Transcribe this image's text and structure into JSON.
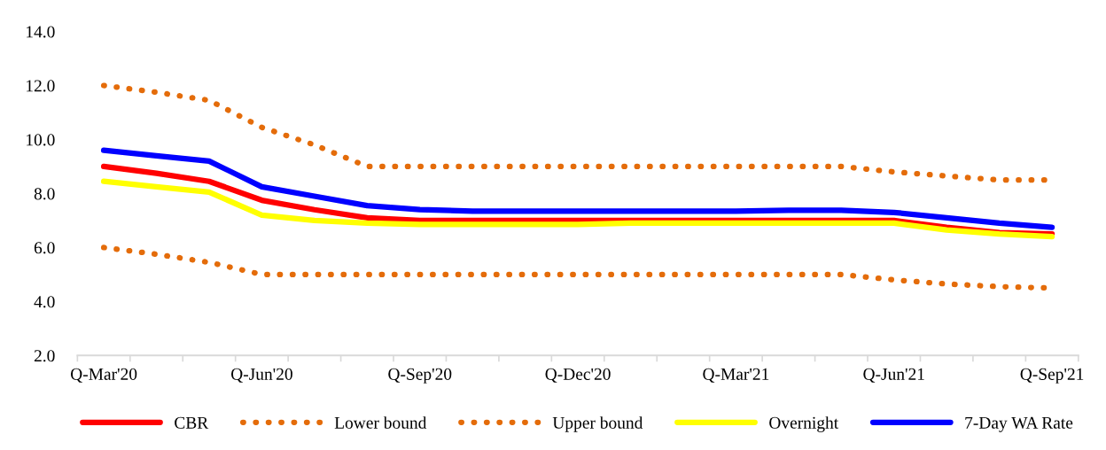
{
  "chart_data": {
    "type": "line",
    "categories": [
      "Q-Mar'20",
      null,
      null,
      "Q-Jun'20",
      null,
      null,
      "Q-Sep'20",
      null,
      null,
      "Q-Dec'20",
      null,
      null,
      "Q-Mar'21",
      null,
      null,
      "Q-Jun'21",
      null,
      null,
      "Q-Sep'21"
    ],
    "series": [
      {
        "name": "CBR",
        "color": "#ff0000",
        "line_style": "solid",
        "values": [
          9.0,
          8.75,
          8.45,
          7.75,
          7.4,
          7.1,
          7.0,
          7.0,
          7.0,
          7.0,
          7.0,
          7.0,
          7.0,
          7.0,
          7.0,
          7.0,
          6.75,
          6.55,
          6.5
        ]
      },
      {
        "name": "Lower bound",
        "color": "#e46c0a",
        "line_style": "dotted",
        "values": [
          6.0,
          5.75,
          5.45,
          5.0,
          5.0,
          5.0,
          5.0,
          5.0,
          5.0,
          5.0,
          5.0,
          5.0,
          5.0,
          5.0,
          5.0,
          4.8,
          4.65,
          4.55,
          4.5
        ]
      },
      {
        "name": "Upper bound",
        "color": "#e46c0a",
        "line_style": "dotted",
        "values": [
          12.0,
          11.75,
          11.45,
          10.45,
          9.8,
          9.0,
          9.0,
          9.0,
          9.0,
          9.0,
          9.0,
          9.0,
          9.0,
          9.0,
          9.0,
          8.8,
          8.65,
          8.5,
          8.5
        ]
      },
      {
        "name": "Overnight",
        "color": "#ffff00",
        "line_style": "solid",
        "values": [
          8.45,
          8.25,
          8.05,
          7.2,
          7.0,
          6.9,
          6.85,
          6.85,
          6.85,
          6.85,
          6.9,
          6.9,
          6.9,
          6.9,
          6.9,
          6.9,
          6.65,
          6.5,
          6.4
        ]
      },
      {
        "name": "7-Day WA Rate",
        "color": "#0000ff",
        "line_style": "solid",
        "values": [
          9.6,
          9.4,
          9.2,
          8.25,
          7.9,
          7.55,
          7.4,
          7.35,
          7.35,
          7.35,
          7.35,
          7.35,
          7.35,
          7.38,
          7.38,
          7.3,
          7.1,
          6.9,
          6.75
        ]
      }
    ],
    "ylim": [
      2.0,
      14.0
    ],
    "yticks": [
      {
        "value": 2,
        "label": "2.0"
      },
      {
        "value": 4,
        "label": "4.0"
      },
      {
        "value": 6,
        "label": "6.0"
      },
      {
        "value": 8,
        "label": "8.0"
      },
      {
        "value": 10,
        "label": "10.0"
      },
      {
        "value": 12,
        "label": "12.0"
      },
      {
        "value": 14,
        "label": "14.0"
      }
    ],
    "marker": "none",
    "grid": false,
    "legend": "bottom"
  }
}
